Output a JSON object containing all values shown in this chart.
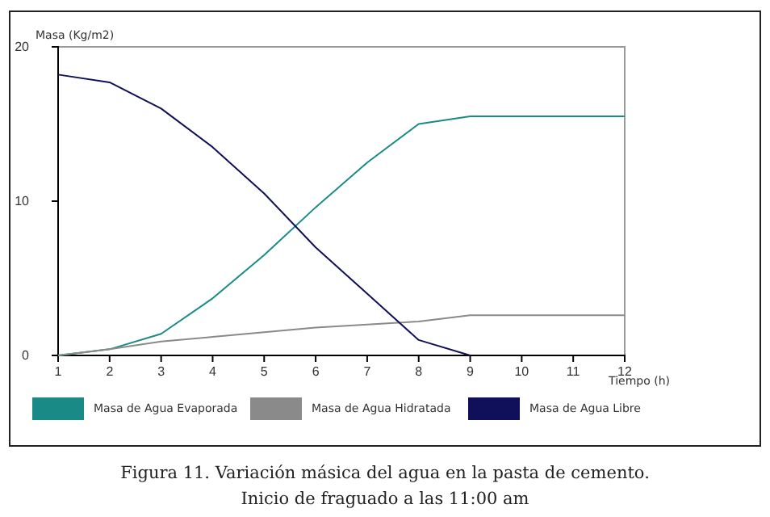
{
  "chart_data": {
    "type": "line",
    "title": "Figura 11. Variación másica del agua en la pasta de cemento.",
    "subtitle": "Inicio de fraguado a las 11:00 am",
    "xlabel": "Tiempo (h)",
    "ylabel": "Masa (Kg/m2)",
    "x": [
      1,
      2,
      3,
      4,
      5,
      6,
      7,
      8,
      9,
      10,
      11,
      12
    ],
    "series": [
      {
        "name": "Masa de Agua Evaporada",
        "color": "#1a8a86",
        "values": [
          0,
          0.4,
          1.4,
          3.7,
          6.5,
          9.6,
          12.5,
          15,
          15.5,
          15.5,
          15.5,
          15.5
        ]
      },
      {
        "name": "Masa de Agua Hidratada",
        "color": "#8a8a8a",
        "values": [
          0,
          0.4,
          0.9,
          1.2,
          1.5,
          1.8,
          2,
          2.2,
          2.6,
          2.6,
          2.6,
          2.6
        ]
      },
      {
        "name": "Masa de Agua Libre",
        "color": "#10105a",
        "values": [
          18.2,
          17.7,
          16,
          13.5,
          10.5,
          7,
          4,
          1,
          0,
          null,
          null,
          null
        ]
      }
    ],
    "xlim": [
      1,
      12
    ],
    "xticks": [
      1,
      2,
      3,
      4,
      5,
      6,
      7,
      8,
      9,
      10,
      11,
      12
    ],
    "ylim": [
      0,
      20
    ],
    "yticks": [
      0,
      10,
      20
    ],
    "grid": false,
    "legend": "bottom",
    "marker": "none",
    "line_style": "solid"
  }
}
